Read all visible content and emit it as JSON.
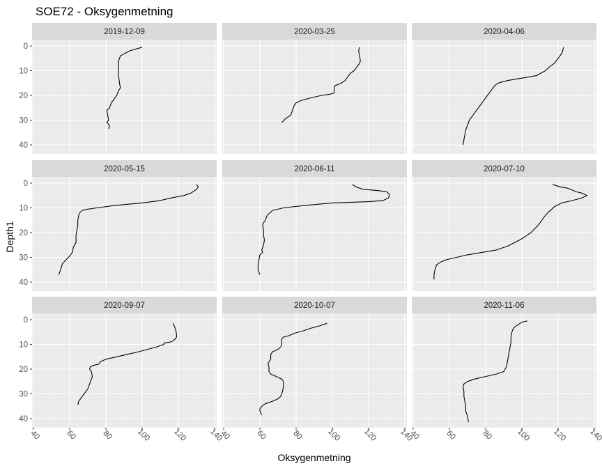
{
  "chart_data": {
    "type": "line",
    "title": "SOE72  -  Oksygenmetning",
    "xlabel": "Oksygenmetning",
    "ylabel": "Depth1",
    "xlim": [
      40,
      140
    ],
    "ylim": [
      0,
      45
    ],
    "y_reversed": true,
    "x_ticks": [
      40,
      60,
      80,
      100,
      120,
      140
    ],
    "y_ticks": [
      0,
      10,
      20,
      30,
      40
    ],
    "grid": true,
    "facet_layout": {
      "rows": 3,
      "cols": 3
    },
    "line_color": "#000000",
    "panel_background": "#ebebeb",
    "strip_background": "#d9d9d9",
    "panels": [
      {
        "label": "2019-12-09",
        "points": [
          [
            100,
            0.5
          ],
          [
            93,
            2
          ],
          [
            88,
            4
          ],
          [
            87,
            6
          ],
          [
            87,
            9
          ],
          [
            87,
            12
          ],
          [
            87.5,
            15
          ],
          [
            88,
            17
          ],
          [
            87,
            18
          ],
          [
            86,
            20
          ],
          [
            84,
            22
          ],
          [
            83,
            23
          ],
          [
            82,
            25
          ],
          [
            80.5,
            26
          ],
          [
            81,
            28
          ],
          [
            81.5,
            30
          ],
          [
            80.5,
            31
          ],
          [
            82,
            32
          ],
          [
            81.5,
            33.5
          ]
        ]
      },
      {
        "label": "2020-03-25",
        "points": [
          [
            115,
            0.5
          ],
          [
            114.5,
            2
          ],
          [
            115,
            4
          ],
          [
            115.5,
            6
          ],
          [
            115,
            7
          ],
          [
            114,
            8
          ],
          [
            112,
            10
          ],
          [
            110,
            11
          ],
          [
            109,
            12
          ],
          [
            107,
            14
          ],
          [
            105,
            15
          ],
          [
            103.5,
            15.5
          ],
          [
            101.5,
            16
          ],
          [
            101,
            17
          ],
          [
            101,
            19
          ],
          [
            99,
            19.5
          ],
          [
            94,
            20
          ],
          [
            88,
            21
          ],
          [
            83,
            22
          ],
          [
            80,
            23
          ],
          [
            79,
            24
          ],
          [
            78,
            26
          ],
          [
            77,
            28
          ],
          [
            74,
            29.5
          ],
          [
            72,
            31
          ]
        ]
      },
      {
        "label": "2020-04-06",
        "points": [
          [
            123,
            0.5
          ],
          [
            122.5,
            2
          ],
          [
            122,
            3
          ],
          [
            120,
            5
          ],
          [
            118,
            7
          ],
          [
            116,
            8
          ],
          [
            113,
            10
          ],
          [
            108,
            12
          ],
          [
            100,
            13
          ],
          [
            92,
            14
          ],
          [
            87,
            15
          ],
          [
            85,
            16
          ],
          [
            83,
            18
          ],
          [
            81,
            20
          ],
          [
            79,
            22
          ],
          [
            77,
            24
          ],
          [
            75,
            26
          ],
          [
            73,
            28
          ],
          [
            71,
            30
          ],
          [
            70,
            32
          ],
          [
            69,
            34
          ],
          [
            68.5,
            36
          ],
          [
            68,
            38
          ],
          [
            67.5,
            40
          ]
        ]
      },
      {
        "label": "2020-05-15",
        "points": [
          [
            130,
            0.5
          ],
          [
            131,
            1.5
          ],
          [
            130,
            2.5
          ],
          [
            127,
            4
          ],
          [
            123,
            5
          ],
          [
            116,
            6
          ],
          [
            110,
            7
          ],
          [
            100,
            8
          ],
          [
            85,
            9
          ],
          [
            75,
            10
          ],
          [
            70,
            10.5
          ],
          [
            67,
            11
          ],
          [
            65.5,
            12
          ],
          [
            65,
            13
          ],
          [
            64.5,
            15
          ],
          [
            64.5,
            17
          ],
          [
            64,
            19
          ],
          [
            63.5,
            21
          ],
          [
            63.5,
            24
          ],
          [
            62,
            26
          ],
          [
            61.5,
            28
          ],
          [
            60,
            29.5
          ],
          [
            58,
            31
          ],
          [
            56,
            32.5
          ],
          [
            55,
            35
          ],
          [
            54,
            37
          ]
        ]
      },
      {
        "label": "2020-06-11",
        "points": [
          [
            111,
            0.5
          ],
          [
            113,
            1.5
          ],
          [
            117,
            2.5
          ],
          [
            125,
            3
          ],
          [
            130,
            3.5
          ],
          [
            131.5,
            4.5
          ],
          [
            131,
            6
          ],
          [
            128,
            7
          ],
          [
            120,
            7.5
          ],
          [
            100,
            8
          ],
          [
            85,
            9
          ],
          [
            73,
            10
          ],
          [
            67,
            11
          ],
          [
            64,
            13
          ],
          [
            63,
            15
          ],
          [
            62,
            16
          ],
          [
            61.5,
            17
          ],
          [
            62,
            19
          ],
          [
            62,
            21
          ],
          [
            62.5,
            23
          ],
          [
            62,
            25
          ],
          [
            61,
            27
          ],
          [
            61.5,
            28
          ],
          [
            60,
            29
          ],
          [
            59.5,
            31
          ],
          [
            59,
            33
          ],
          [
            59,
            35
          ],
          [
            60,
            37
          ]
        ]
      },
      {
        "label": "2020-07-10",
        "points": [
          [
            117,
            0.5
          ],
          [
            121,
            1.5
          ],
          [
            125,
            2
          ],
          [
            127,
            2.5
          ],
          [
            128.5,
            3
          ],
          [
            130,
            3.5
          ],
          [
            133,
            4
          ],
          [
            136,
            5
          ],
          [
            133,
            6
          ],
          [
            128,
            7
          ],
          [
            122,
            8
          ],
          [
            118,
            9.5
          ],
          [
            115,
            11.5
          ],
          [
            113,
            13
          ],
          [
            111,
            15
          ],
          [
            109,
            17
          ],
          [
            107,
            18.5
          ],
          [
            105,
            20
          ],
          [
            103,
            21
          ],
          [
            100,
            22.5
          ],
          [
            96,
            24
          ],
          [
            92,
            25.5
          ],
          [
            86,
            27
          ],
          [
            78,
            28
          ],
          [
            70,
            29
          ],
          [
            64,
            30
          ],
          [
            58,
            31
          ],
          [
            55,
            32
          ],
          [
            53,
            33
          ],
          [
            52,
            35
          ],
          [
            51.5,
            37
          ],
          [
            51.5,
            39
          ]
        ]
      },
      {
        "label": "2020-09-07",
        "points": [
          [
            117,
            1.5
          ],
          [
            118,
            3
          ],
          [
            118.5,
            4
          ],
          [
            119,
            6
          ],
          [
            119,
            7
          ],
          [
            118,
            8
          ],
          [
            116,
            9
          ],
          [
            112,
            9.5
          ],
          [
            112,
            10
          ],
          [
            108,
            11
          ],
          [
            103,
            12
          ],
          [
            98,
            13
          ],
          [
            92,
            14
          ],
          [
            86,
            15
          ],
          [
            80,
            16
          ],
          [
            77,
            17
          ],
          [
            76,
            18
          ],
          [
            73,
            18.5
          ],
          [
            71.5,
            19
          ],
          [
            71,
            20
          ],
          [
            72,
            21
          ],
          [
            72.5,
            23
          ],
          [
            72,
            24
          ],
          [
            71.5,
            25
          ],
          [
            71,
            26
          ],
          [
            70,
            28
          ],
          [
            68,
            30
          ],
          [
            67,
            31
          ],
          [
            66,
            32
          ],
          [
            65,
            33
          ],
          [
            64.5,
            34.5
          ]
        ]
      },
      {
        "label": "2020-10-07",
        "points": [
          [
            97,
            1.5
          ],
          [
            93,
            2.5
          ],
          [
            88,
            3.5
          ],
          [
            84,
            4.5
          ],
          [
            79,
            5.5
          ],
          [
            76,
            6.5
          ],
          [
            73,
            7
          ],
          [
            72,
            8
          ],
          [
            72,
            10
          ],
          [
            71.5,
            11
          ],
          [
            70,
            12
          ],
          [
            67,
            13
          ],
          [
            66,
            14
          ],
          [
            66,
            16
          ],
          [
            65,
            17
          ],
          [
            64.5,
            18
          ],
          [
            65,
            19
          ],
          [
            65,
            21
          ],
          [
            66,
            22
          ],
          [
            69,
            23
          ],
          [
            72,
            24
          ],
          [
            73,
            25
          ],
          [
            73,
            27
          ],
          [
            72.5,
            29
          ],
          [
            71.5,
            31
          ],
          [
            70,
            32
          ],
          [
            67,
            33
          ],
          [
            63,
            34
          ],
          [
            61,
            35
          ],
          [
            60,
            36
          ],
          [
            60,
            37
          ],
          [
            61,
            38.5
          ]
        ]
      },
      {
        "label": "2020-11-06",
        "points": [
          [
            103,
            0.5
          ],
          [
            100,
            1
          ],
          [
            98,
            2
          ],
          [
            96,
            3
          ],
          [
            95,
            4
          ],
          [
            94.5,
            5
          ],
          [
            94,
            7
          ],
          [
            94,
            9
          ],
          [
            93.5,
            11
          ],
          [
            93,
            13
          ],
          [
            92.5,
            15
          ],
          [
            92,
            17
          ],
          [
            91.5,
            19
          ],
          [
            90,
            21
          ],
          [
            86,
            22
          ],
          [
            80,
            23
          ],
          [
            74,
            24
          ],
          [
            70,
            25
          ],
          [
            68,
            26
          ],
          [
            67.5,
            27
          ],
          [
            68,
            29
          ],
          [
            68,
            31
          ],
          [
            68.5,
            33
          ],
          [
            69,
            35
          ],
          [
            69,
            37
          ],
          [
            70,
            39
          ],
          [
            70.5,
            41.5
          ]
        ]
      }
    ]
  }
}
